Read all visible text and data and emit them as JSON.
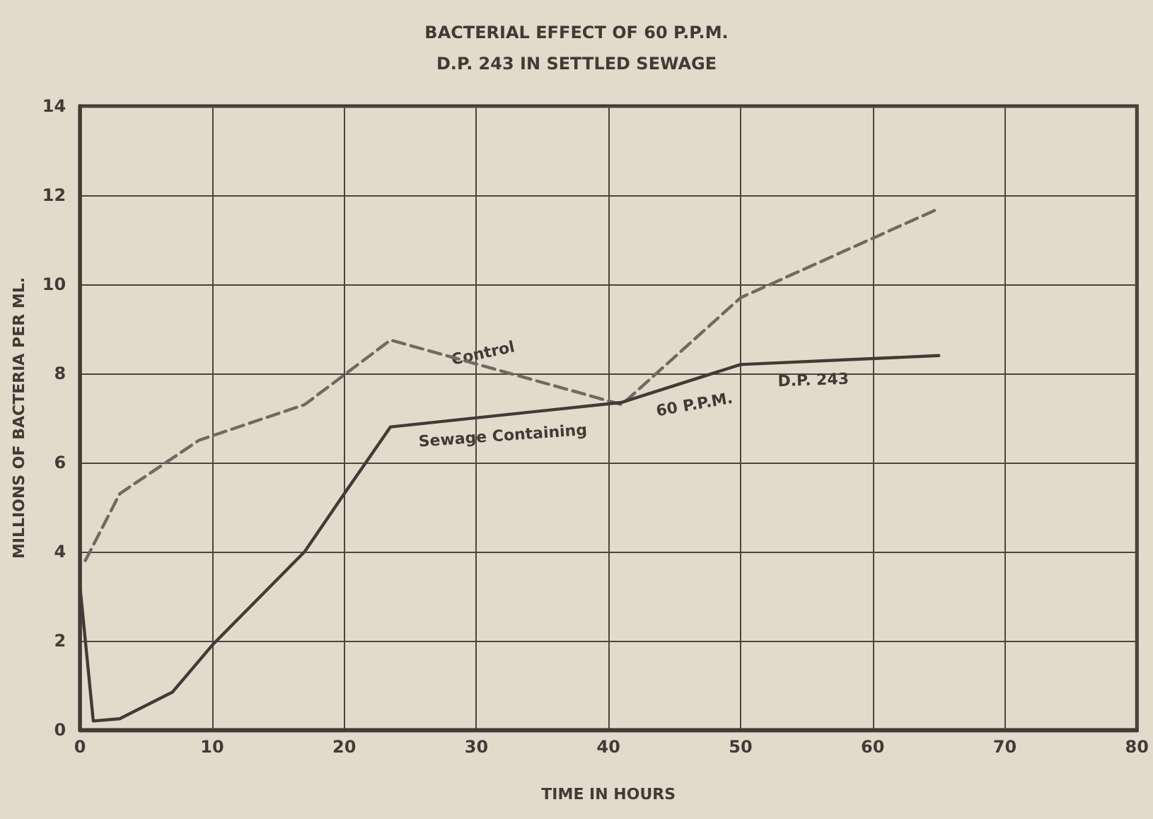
{
  "chart_data": {
    "type": "line",
    "title": "BACTERIAL EFFECT OF 60 P.P.M.",
    "subtitle": "D.P. 243 IN SETTLED SEWAGE",
    "xlabel": "TIME IN HOURS",
    "ylabel": "MILLIONS OF BACTERIA PER ML.",
    "series": [
      {
        "color": "#6e6a62",
        "line_style": "dashed",
        "x": [
          0.4,
          3,
          9,
          17,
          23.5,
          41,
          50,
          65
        ],
        "values": [
          3.8,
          5.3,
          6.5,
          7.3,
          8.75,
          7.3,
          9.7,
          11.7
        ]
      },
      {
        "color": "#3f3b36",
        "line_style": "solid",
        "x": [
          0,
          1,
          3,
          7,
          10,
          17,
          20,
          23.5,
          41,
          50,
          65
        ],
        "values": [
          3.2,
          0.2,
          0.25,
          0.85,
          1.9,
          4,
          5.3,
          6.8,
          7.35,
          8.2,
          8.4
        ]
      }
    ],
    "annotations": [
      "Control",
      "Sewage Containing",
      "60 P.P.M.",
      "D.P. 243"
    ],
    "xlim": [
      0,
      80
    ],
    "xticks": [
      0,
      10,
      20,
      30,
      40,
      50,
      60,
      70,
      80
    ],
    "ylim": [
      0,
      14
    ],
    "yticks": [
      0,
      2,
      4,
      6,
      8,
      10,
      12,
      14
    ],
    "grid": true,
    "marker": "none"
  }
}
